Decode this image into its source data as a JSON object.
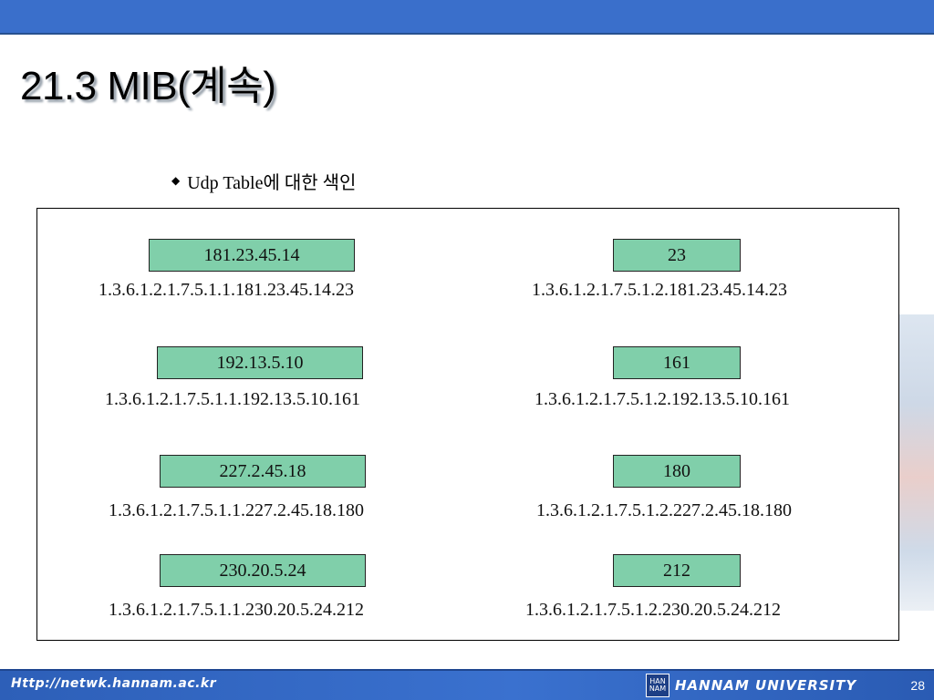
{
  "slide": {
    "title": "21.3 MIB(계속)",
    "bullet": {
      "icon": "diamond-bullet-icon",
      "text": "Udp Table에 대한 색인"
    }
  },
  "diagram": {
    "left": [
      {
        "address": "181.23.45.14",
        "oid": "1.3.6.1.2.1.7.5.1.1.181.23.45.14.23"
      },
      {
        "address": "192.13.5.10",
        "oid": "1.3.6.1.2.1.7.5.1.1.192.13.5.10.161"
      },
      {
        "address": "227.2.45.18",
        "oid": "1.3.6.1.2.1.7.5.1.1.227.2.45.18.180"
      },
      {
        "address": "230.20.5.24",
        "oid": "1.3.6.1.2.1.7.5.1.1.230.20.5.24.212"
      }
    ],
    "right": [
      {
        "port": "23",
        "oid": "1.3.6.1.2.1.7.5.1.2.181.23.45.14.23"
      },
      {
        "port": "161",
        "oid": "1.3.6.1.2.1.7.5.1.2.192.13.5.10.161"
      },
      {
        "port": "180",
        "oid": "1.3.6.1.2.1.7.5.1.2.227.2.45.18.180"
      },
      {
        "port": "212",
        "oid": "1.3.6.1.2.1.7.5.1.2.230.20.5.24.212"
      }
    ],
    "box_color": "#80cfaa"
  },
  "footer": {
    "url": "Http://netwk.hannam.ac.kr",
    "university": "HANNAM UNIVERSITY",
    "logo_text": "HAN NAM",
    "logo_icon": "hannam-university-logo-icon",
    "page_number": "28"
  },
  "colors": {
    "header_bar": "#3a6fcb",
    "footer_bar": "#2d5fb8"
  }
}
